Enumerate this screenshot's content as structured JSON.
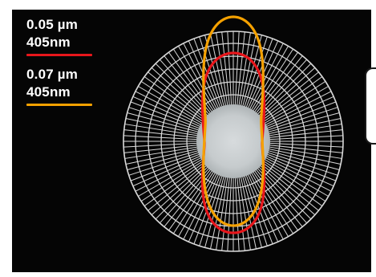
{
  "legend": [
    {
      "line1": "0.05 µm",
      "line2": "405nm",
      "color": "#e8161b"
    },
    {
      "line1": "0.07 µm",
      "line2": "405nm",
      "color": "#f5a100"
    }
  ],
  "colors": {
    "background": "#050505",
    "grid": "#d9d9d9",
    "core": "#bfc4c6"
  }
}
